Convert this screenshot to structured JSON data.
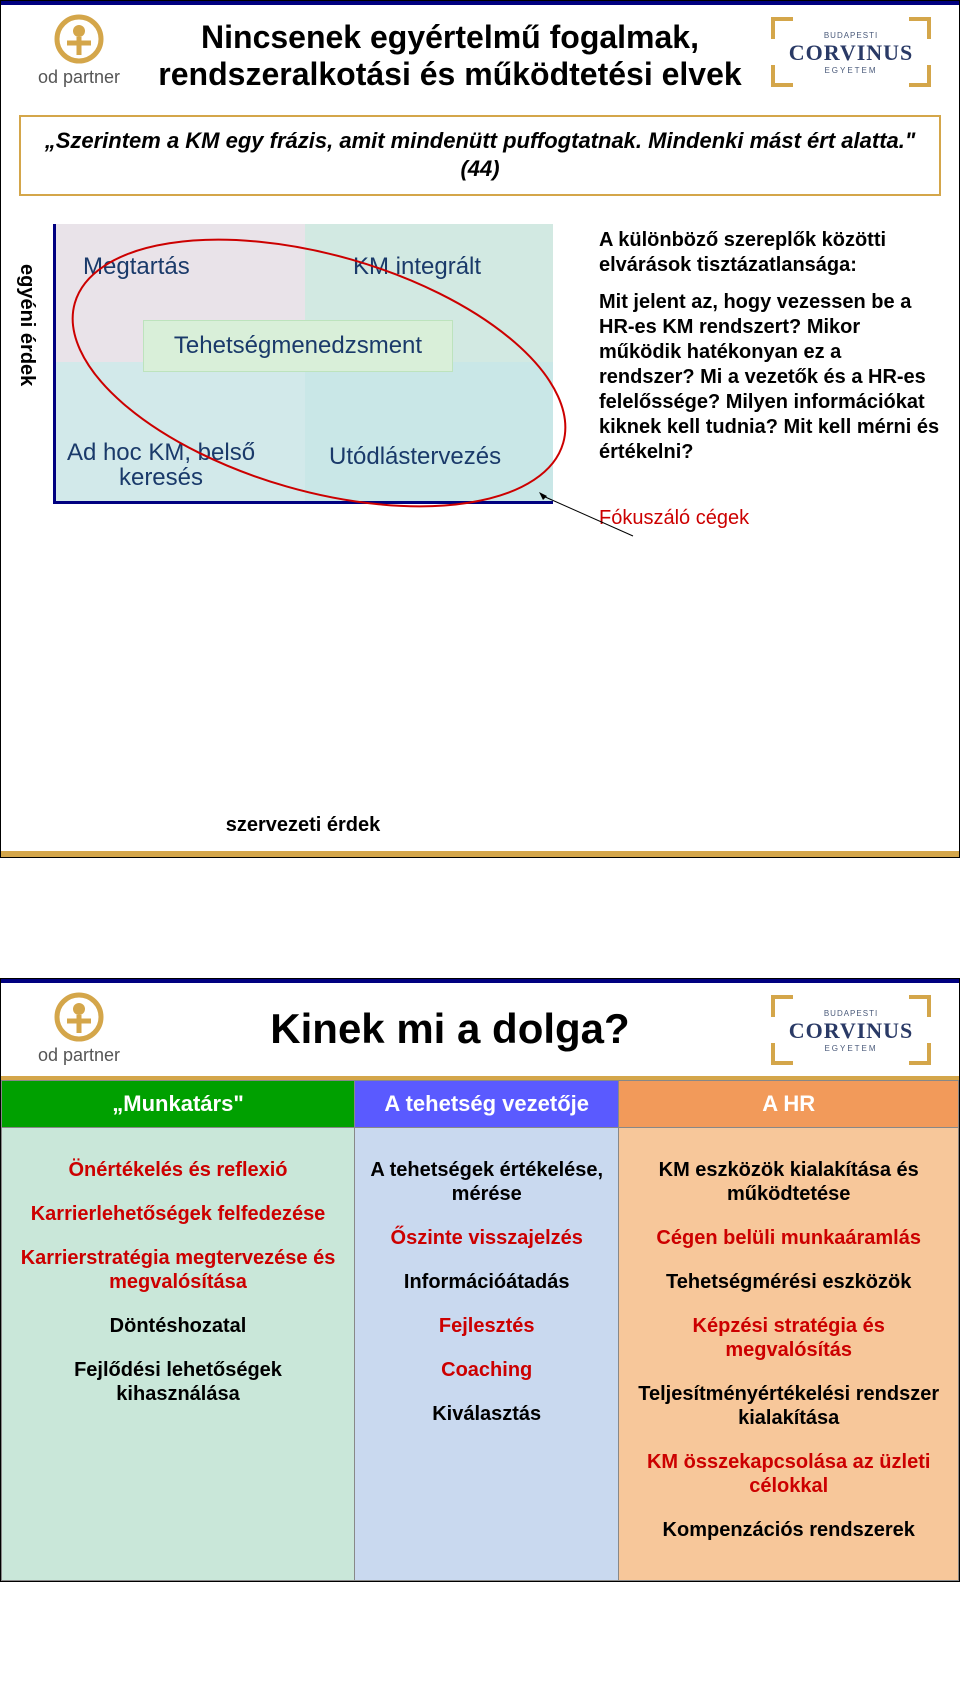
{
  "colors": {
    "navy": "#000080",
    "gold": "#d4a64a",
    "red": "#cc0000",
    "q_tl": "#e9e3e9",
    "q_tr": "#d2e9e2",
    "q_bl": "#d2e9ea",
    "q_br": "#c9e7e7",
    "mid_box": "#d9efd9",
    "head1": "#00a000",
    "head2": "#5a5aff",
    "head3": "#f29a5a",
    "body1": "#c9e7d9",
    "body2": "#c9d9ef",
    "body3": "#f7c79a"
  },
  "logos": {
    "od_label": "od partner",
    "corv_small": "BUDAPESTI",
    "corv_big": "CORVINUS",
    "corv_sub": "EGYETEM"
  },
  "slide1": {
    "title": "Nincsenek egyértelmű fogalmak, rendszeralkotási és működtetési elvek",
    "quote": "„Szerintem a KM egy frázis, amit mindenütt puffogtatnak. Mindenki mást ért alatta.\"(44)",
    "y_axis": "egyéni érdek",
    "x_axis": "szervezeti érdek",
    "q_tl": "Megtartás",
    "q_tr": "KM integrált",
    "q_bl": "Ad hoc KM, belső keresés",
    "q_br": "Utódlástervezés",
    "mid": "Tehetségmenedzsment",
    "right_heading": "A különböző szereplők közötti elvárások tisztázatlansága:",
    "right_text": "Mit jelent az, hogy vezessen be a HR-es KM rendszert? Mikor működik hatékonyan ez a rendszer? Mi a vezetők és a HR-es felelőssége? Milyen információkat kiknek kell tudnia? Mit kell mérni és értékelni?",
    "focus": "Fókuszáló cégek"
  },
  "slide2": {
    "title": "Kinek mi a dolga?",
    "headers": [
      "„Munkatárs\"",
      "A tehetség vezetője",
      "A HR"
    ],
    "col1": [
      {
        "text": "Önértékelés és reflexió",
        "color": "red"
      },
      {
        "text": "Karrierlehetőségek felfedezése",
        "color": "red"
      },
      {
        "text": "Karrierstratégia megtervezése és megvalósítása",
        "color": "red"
      },
      {
        "text": "Döntéshozatal",
        "color": "black"
      },
      {
        "text": "Fejlődési lehetőségek kihasználása",
        "color": "black"
      }
    ],
    "col2": [
      {
        "text": "A tehetségek értékelése, mérése",
        "color": "black"
      },
      {
        "text": "Őszinte visszajelzés",
        "color": "red"
      },
      {
        "text": "Információátadás",
        "color": "black"
      },
      {
        "text": "Fejlesztés",
        "color": "red"
      },
      {
        "text": "Coaching",
        "color": "red"
      },
      {
        "text": "Kiválasztás",
        "color": "black"
      }
    ],
    "col3": [
      {
        "text": "KM eszközök kialakítása és működtetése",
        "color": "black"
      },
      {
        "text": "Cégen belüli munkaáramlás",
        "color": "red"
      },
      {
        "text": "Tehetségmérési eszközök",
        "color": "black"
      },
      {
        "text": "Képzési stratégia és megvalósítás",
        "color": "red"
      },
      {
        "text": "Teljesítményértékelési rendszer kialakítása",
        "color": "black"
      },
      {
        "text": "KM összekapcsolása az üzleti célokkal",
        "color": "red"
      },
      {
        "text": "Kompenzációs rendszerek",
        "color": "black"
      }
    ]
  }
}
